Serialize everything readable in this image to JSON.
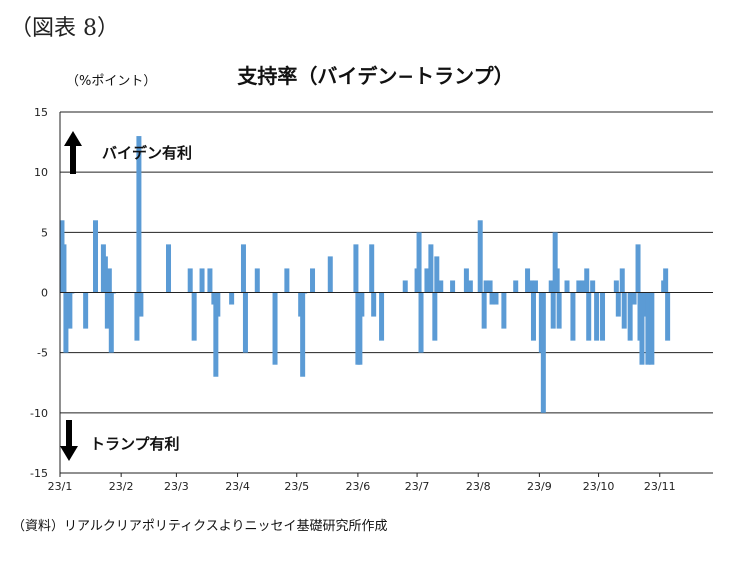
{
  "figure_label": "（図表 8）",
  "source_note": "（資料）リアルクリアポリティクスよりニッセイ基礎研究所作成",
  "chart_data": {
    "type": "bar",
    "title": "支持率（バイデン−トランプ）",
    "ylabel": "（%ポイント）",
    "xlabel": "",
    "ylim": [
      -15,
      15
    ],
    "yticks": [
      15,
      10,
      5,
      0,
      -5,
      -10,
      -15
    ],
    "grid": true,
    "bar_color": "#5b9bd5",
    "x_range": [
      "2023-01-01",
      "2023-11-28"
    ],
    "x_tick_labels": [
      {
        "date": "2023-01-01",
        "label": "23/1"
      },
      {
        "date": "2023-02-01",
        "label": "23/2"
      },
      {
        "date": "2023-03-01",
        "label": "23/3"
      },
      {
        "date": "2023-04-01",
        "label": "23/4"
      },
      {
        "date": "2023-05-01",
        "label": "23/5"
      },
      {
        "date": "2023-06-01",
        "label": "23/6"
      },
      {
        "date": "2023-07-01",
        "label": "23/7"
      },
      {
        "date": "2023-08-01",
        "label": "23/8"
      },
      {
        "date": "2023-09-01",
        "label": "23/9"
      },
      {
        "date": "2023-10-01",
        "label": "23/10"
      },
      {
        "date": "2023-11-01",
        "label": "23/11"
      }
    ],
    "annotations": [
      {
        "text": "バイデン有利",
        "direction": "up"
      },
      {
        "text": "トランプ有利",
        "direction": "down"
      }
    ],
    "points": [
      {
        "date": "2023-01-02",
        "value": 6
      },
      {
        "date": "2023-01-03",
        "value": 4
      },
      {
        "date": "2023-01-04",
        "value": -5
      },
      {
        "date": "2023-01-06",
        "value": -3
      },
      {
        "date": "2023-01-07",
        "value": 0
      },
      {
        "date": "2023-01-14",
        "value": -3
      },
      {
        "date": "2023-01-19",
        "value": 6
      },
      {
        "date": "2023-01-23",
        "value": 4
      },
      {
        "date": "2023-01-24",
        "value": 3
      },
      {
        "date": "2023-01-25",
        "value": -3
      },
      {
        "date": "2023-01-26",
        "value": 2
      },
      {
        "date": "2023-01-27",
        "value": -5
      },
      {
        "date": "2023-01-28",
        "value": 0
      },
      {
        "date": "2023-02-09",
        "value": -4
      },
      {
        "date": "2023-02-10",
        "value": 13
      },
      {
        "date": "2023-02-11",
        "value": -2
      },
      {
        "date": "2023-02-25",
        "value": 4
      },
      {
        "date": "2023-03-08",
        "value": 2
      },
      {
        "date": "2023-03-10",
        "value": -4
      },
      {
        "date": "2023-03-14",
        "value": 2
      },
      {
        "date": "2023-03-18",
        "value": 2
      },
      {
        "date": "2023-03-20",
        "value": -1
      },
      {
        "date": "2023-03-21",
        "value": -7
      },
      {
        "date": "2023-03-22",
        "value": -2
      },
      {
        "date": "2023-03-29",
        "value": -1
      },
      {
        "date": "2023-04-04",
        "value": 4
      },
      {
        "date": "2023-04-05",
        "value": -5
      },
      {
        "date": "2023-04-11",
        "value": 2
      },
      {
        "date": "2023-04-20",
        "value": -6
      },
      {
        "date": "2023-04-26",
        "value": 2
      },
      {
        "date": "2023-05-03",
        "value": -2
      },
      {
        "date": "2023-05-04",
        "value": -7
      },
      {
        "date": "2023-05-05",
        "value": 0
      },
      {
        "date": "2023-05-09",
        "value": 2
      },
      {
        "date": "2023-05-18",
        "value": 3
      },
      {
        "date": "2023-05-31",
        "value": 4
      },
      {
        "date": "2023-06-01",
        "value": -6
      },
      {
        "date": "2023-06-02",
        "value": -6
      },
      {
        "date": "2023-06-03",
        "value": -2
      },
      {
        "date": "2023-06-08",
        "value": 4
      },
      {
        "date": "2023-06-09",
        "value": -2
      },
      {
        "date": "2023-06-13",
        "value": -4
      },
      {
        "date": "2023-06-25",
        "value": 1
      },
      {
        "date": "2023-07-01",
        "value": 2
      },
      {
        "date": "2023-07-02",
        "value": 5
      },
      {
        "date": "2023-07-03",
        "value": -5
      },
      {
        "date": "2023-07-06",
        "value": 2
      },
      {
        "date": "2023-07-08",
        "value": 4
      },
      {
        "date": "2023-07-10",
        "value": -4
      },
      {
        "date": "2023-07-11",
        "value": 3
      },
      {
        "date": "2023-07-13",
        "value": 1
      },
      {
        "date": "2023-07-19",
        "value": 1
      },
      {
        "date": "2023-07-26",
        "value": 2
      },
      {
        "date": "2023-07-28",
        "value": 1
      },
      {
        "date": "2023-08-02",
        "value": 6
      },
      {
        "date": "2023-08-04",
        "value": -3
      },
      {
        "date": "2023-08-05",
        "value": 1
      },
      {
        "date": "2023-08-07",
        "value": 1
      },
      {
        "date": "2023-08-08",
        "value": -1
      },
      {
        "date": "2023-08-10",
        "value": -1
      },
      {
        "date": "2023-08-14",
        "value": -3
      },
      {
        "date": "2023-08-20",
        "value": 1
      },
      {
        "date": "2023-08-26",
        "value": 2
      },
      {
        "date": "2023-08-28",
        "value": 1
      },
      {
        "date": "2023-08-29",
        "value": -4
      },
      {
        "date": "2023-08-30",
        "value": 1
      },
      {
        "date": "2023-09-02",
        "value": -5
      },
      {
        "date": "2023-09-03",
        "value": -10
      },
      {
        "date": "2023-09-07",
        "value": 1
      },
      {
        "date": "2023-09-08",
        "value": -3
      },
      {
        "date": "2023-09-09",
        "value": 5
      },
      {
        "date": "2023-09-10",
        "value": 2
      },
      {
        "date": "2023-09-11",
        "value": -3
      },
      {
        "date": "2023-09-15",
        "value": 1
      },
      {
        "date": "2023-09-18",
        "value": -4
      },
      {
        "date": "2023-09-21",
        "value": 1
      },
      {
        "date": "2023-09-23",
        "value": 1
      },
      {
        "date": "2023-09-25",
        "value": 2
      },
      {
        "date": "2023-09-26",
        "value": -4
      },
      {
        "date": "2023-09-28",
        "value": 1
      },
      {
        "date": "2023-09-30",
        "value": -4
      },
      {
        "date": "2023-10-03",
        "value": -4
      },
      {
        "date": "2023-10-10",
        "value": 1
      },
      {
        "date": "2023-10-11",
        "value": -2
      },
      {
        "date": "2023-10-13",
        "value": 2
      },
      {
        "date": "2023-10-14",
        "value": -3
      },
      {
        "date": "2023-10-17",
        "value": -4
      },
      {
        "date": "2023-10-19",
        "value": -1
      },
      {
        "date": "2023-10-21",
        "value": 4
      },
      {
        "date": "2023-10-22",
        "value": -4
      },
      {
        "date": "2023-10-23",
        "value": -6
      },
      {
        "date": "2023-10-25",
        "value": -2
      },
      {
        "date": "2023-10-26",
        "value": -6
      },
      {
        "date": "2023-10-28",
        "value": -6
      },
      {
        "date": "2023-11-03",
        "value": 1
      },
      {
        "date": "2023-11-04",
        "value": 2
      },
      {
        "date": "2023-11-05",
        "value": -4
      }
    ]
  }
}
